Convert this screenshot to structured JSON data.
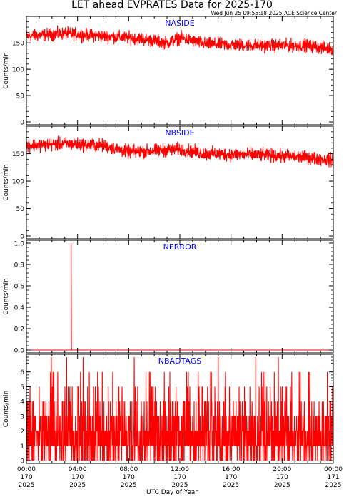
{
  "header": {
    "title": "LET ahead EVPRATES Data for 2025-170",
    "timestamp": "Wed Jun 25 09:55:18 2025 ACE Science Center"
  },
  "x_axis": {
    "label": "UTC Day of Year",
    "ticks": [
      {
        "time": "00:00",
        "doy": "170",
        "year": "2025"
      },
      {
        "time": "04:00",
        "doy": "170",
        "year": "2025"
      },
      {
        "time": "08:00",
        "doy": "170",
        "year": "2025"
      },
      {
        "time": "12:00",
        "doy": "170",
        "year": "2025"
      },
      {
        "time": "16:00",
        "doy": "170",
        "year": "2025"
      },
      {
        "time": "20:00",
        "doy": "170",
        "year": "2025"
      },
      {
        "time": "00:00",
        "doy": "171",
        "year": "2025"
      }
    ]
  },
  "colors": {
    "series": "#ff0000",
    "panel_label": "#0000ff",
    "axis": "#000000"
  },
  "chart_data": [
    {
      "type": "line",
      "title": "NASIDE",
      "ylabel": "Counts/min",
      "ylim": [
        0,
        195
      ],
      "yticks": [
        0,
        50,
        100,
        150
      ],
      "xlim": [
        0,
        24
      ],
      "x_unit": "hours UTC, day 170",
      "trend": {
        "x": [
          0,
          3,
          6,
          9,
          11,
          12,
          14,
          18,
          22,
          24
        ],
        "y": [
          163,
          168,
          163,
          158,
          150,
          160,
          148,
          145,
          145,
          138
        ]
      },
      "noise": 12,
      "spike": null
    },
    {
      "type": "line",
      "title": "NBSIDE",
      "ylabel": "Counts/min",
      "ylim": [
        0,
        195
      ],
      "yticks": [
        0,
        50,
        100,
        150
      ],
      "xlim": [
        0,
        24
      ],
      "x_unit": "hours UTC, day 170",
      "trend": {
        "x": [
          0,
          3,
          6,
          8,
          12,
          14,
          18,
          22,
          24
        ],
        "y": [
          165,
          168,
          165,
          153,
          158,
          150,
          148,
          143,
          138
        ]
      },
      "noise": 12,
      "spike": null
    },
    {
      "type": "line",
      "title": "NERROR",
      "ylabel": "Counts/min",
      "ylim": [
        0,
        1.0
      ],
      "yticks": [
        0.0,
        0.2,
        0.4,
        0.6,
        0.8,
        1.0
      ],
      "yfmt": 1,
      "xlim": [
        0,
        24
      ],
      "x_unit": "hours UTC, day 170",
      "trend": {
        "x": [
          0,
          24
        ],
        "y": [
          0,
          0
        ]
      },
      "noise": 0,
      "spike": {
        "x": 3.5,
        "y": 1.0
      }
    },
    {
      "type": "line",
      "title": "NBADTAGS",
      "ylabel": "Counts/min",
      "ylim": [
        0,
        7
      ],
      "yticks": [
        0,
        1,
        2,
        3,
        4,
        5,
        6
      ],
      "xlim": [
        0,
        24
      ],
      "x_unit": "hours UTC, day 170",
      "trend": null,
      "discrete": true,
      "discrete_max": 7,
      "spike": null
    }
  ]
}
